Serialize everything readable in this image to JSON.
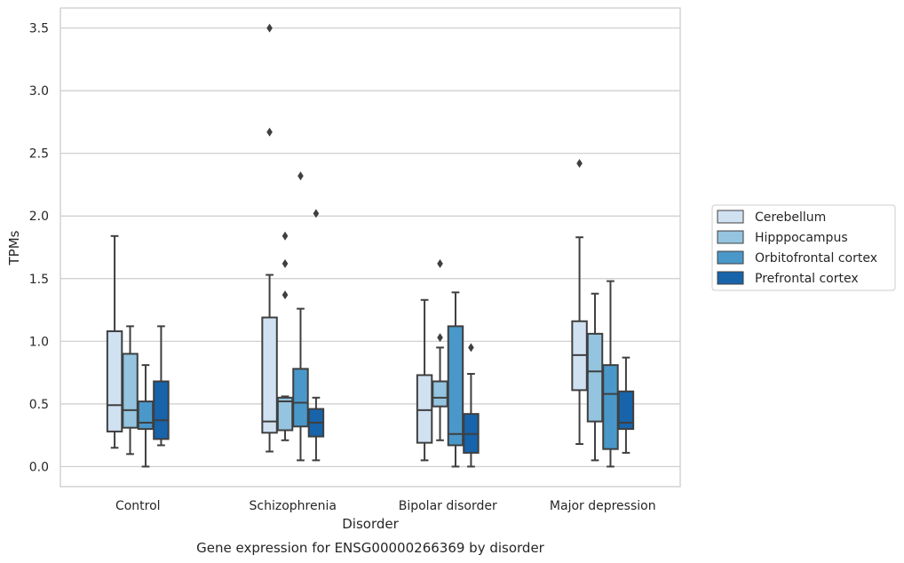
{
  "chart_data": {
    "type": "box",
    "title": "Gene expression for ENSG00000266369 by disorder",
    "xlabel": "Disorder",
    "ylabel": "TPMs",
    "ylim": [
      -0.16,
      3.66
    ],
    "yticks": [
      "0.0",
      "0.5",
      "1.0",
      "1.5",
      "2.0",
      "2.5",
      "3.0",
      "3.5"
    ],
    "grid": "horizontal",
    "legend_position": "right",
    "categories": [
      "Control",
      "Schizophrenia",
      "Bipolar disorder",
      "Major depression"
    ],
    "series": [
      {
        "name": "Cerebellum",
        "color": "#d0e1f2",
        "boxes": [
          {
            "whislo": 0.15,
            "q1": 0.28,
            "med": 0.49,
            "q3": 1.08,
            "whishi": 1.84,
            "fliers": []
          },
          {
            "whislo": 0.12,
            "q1": 0.27,
            "med": 0.36,
            "q3": 1.19,
            "whishi": 1.53,
            "fliers": [
              2.67,
              3.5
            ]
          },
          {
            "whislo": 0.05,
            "q1": 0.19,
            "med": 0.45,
            "q3": 0.73,
            "whishi": 1.33,
            "fliers": []
          },
          {
            "whislo": 0.18,
            "q1": 0.61,
            "med": 0.89,
            "q3": 1.16,
            "whishi": 1.83,
            "fliers": [
              2.42
            ]
          }
        ]
      },
      {
        "name": "Hipppocampus",
        "color": "#94c4df",
        "boxes": [
          {
            "whislo": 0.1,
            "q1": 0.31,
            "med": 0.45,
            "q3": 0.9,
            "whishi": 1.12,
            "fliers": []
          },
          {
            "whislo": 0.21,
            "q1": 0.29,
            "med": 0.52,
            "q3": 0.55,
            "whishi": 0.56,
            "fliers": [
              1.37,
              1.62,
              1.84
            ]
          },
          {
            "whislo": 0.21,
            "q1": 0.48,
            "med": 0.55,
            "q3": 0.68,
            "whishi": 0.95,
            "fliers": [
              1.03,
              1.62
            ]
          },
          {
            "whislo": 0.05,
            "q1": 0.36,
            "med": 0.76,
            "q3": 1.06,
            "whishi": 1.38,
            "fliers": []
          }
        ]
      },
      {
        "name": "Orbitofrontal cortex",
        "color": "#4a98c9",
        "boxes": [
          {
            "whislo": 0.0,
            "q1": 0.3,
            "med": 0.35,
            "q3": 0.52,
            "whishi": 0.81,
            "fliers": []
          },
          {
            "whislo": 0.05,
            "q1": 0.32,
            "med": 0.51,
            "q3": 0.78,
            "whishi": 1.26,
            "fliers": [
              2.32
            ]
          },
          {
            "whislo": 0.0,
            "q1": 0.17,
            "med": 0.26,
            "q3": 1.12,
            "whishi": 1.39,
            "fliers": []
          },
          {
            "whislo": 0.0,
            "q1": 0.14,
            "med": 0.58,
            "q3": 0.81,
            "whishi": 1.48,
            "fliers": []
          }
        ]
      },
      {
        "name": "Prefrontal cortex",
        "color": "#1764ab",
        "boxes": [
          {
            "whislo": 0.17,
            "q1": 0.22,
            "med": 0.37,
            "q3": 0.68,
            "whishi": 1.12,
            "fliers": []
          },
          {
            "whislo": 0.05,
            "q1": 0.24,
            "med": 0.35,
            "q3": 0.46,
            "whishi": 0.55,
            "fliers": [
              2.02
            ]
          },
          {
            "whislo": 0.0,
            "q1": 0.11,
            "med": 0.26,
            "q3": 0.42,
            "whishi": 0.74,
            "fliers": [
              0.95
            ]
          },
          {
            "whislo": 0.11,
            "q1": 0.3,
            "med": 0.35,
            "q3": 0.6,
            "whishi": 0.87,
            "fliers": []
          }
        ]
      }
    ],
    "colors": {
      "line": "#3f3f3f",
      "grid": "#cccccc",
      "frame": "#cccccc",
      "background": "#ffffff"
    }
  }
}
